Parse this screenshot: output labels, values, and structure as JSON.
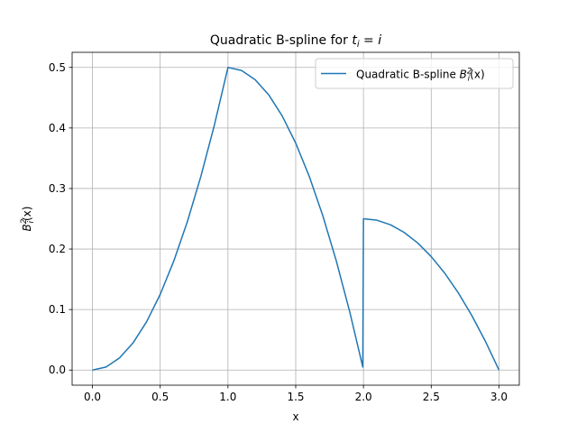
{
  "chart_data": {
    "type": "line",
    "title": "Quadratic B-spline for ",
    "title_math": {
      "t": "t",
      "sub": "i",
      "eq": " = ",
      "rhs": "i"
    },
    "xlabel": "x",
    "ylabel_math": {
      "B": "B",
      "sub": "i",
      "sup": "2",
      "arg": "(x)"
    },
    "xlim": [
      -0.15,
      3.15
    ],
    "ylim": [
      -0.025,
      0.525
    ],
    "xticks": [
      0.0,
      0.5,
      1.0,
      1.5,
      2.0,
      2.5,
      3.0
    ],
    "xtick_labels": [
      "0.0",
      "0.5",
      "1.0",
      "1.5",
      "2.0",
      "2.5",
      "3.0"
    ],
    "yticks": [
      0.0,
      0.1,
      0.2,
      0.3,
      0.4,
      0.5
    ],
    "ytick_labels": [
      "0.0",
      "0.1",
      "0.2",
      "0.3",
      "0.4",
      "0.5"
    ],
    "grid": true,
    "legend_position": "top-right",
    "series": [
      {
        "name": "Quadratic B-spline ",
        "name_math": {
          "B": "B",
          "sub": "i",
          "sup": "2",
          "arg": "(x)"
        },
        "color": "#1f77b4",
        "x": [
          0.0,
          0.1,
          0.2,
          0.3,
          0.4,
          0.5,
          0.6,
          0.7,
          0.8,
          0.9,
          1.0,
          1.1,
          1.2,
          1.3,
          1.4,
          1.5,
          1.6,
          1.7,
          1.8,
          1.9,
          1.995,
          2.0,
          2.1,
          2.2,
          2.3,
          2.4,
          2.5,
          2.6,
          2.7,
          2.8,
          2.9,
          3.0
        ],
        "y": [
          0.0,
          0.005,
          0.02,
          0.045,
          0.08,
          0.125,
          0.18,
          0.245,
          0.32,
          0.405,
          0.5,
          0.495,
          0.48,
          0.455,
          0.42,
          0.375,
          0.32,
          0.255,
          0.18,
          0.095,
          0.005,
          0.25,
          0.2475,
          0.24,
          0.2275,
          0.21,
          0.1875,
          0.16,
          0.1275,
          0.09,
          0.0475,
          0.0
        ]
      }
    ]
  }
}
